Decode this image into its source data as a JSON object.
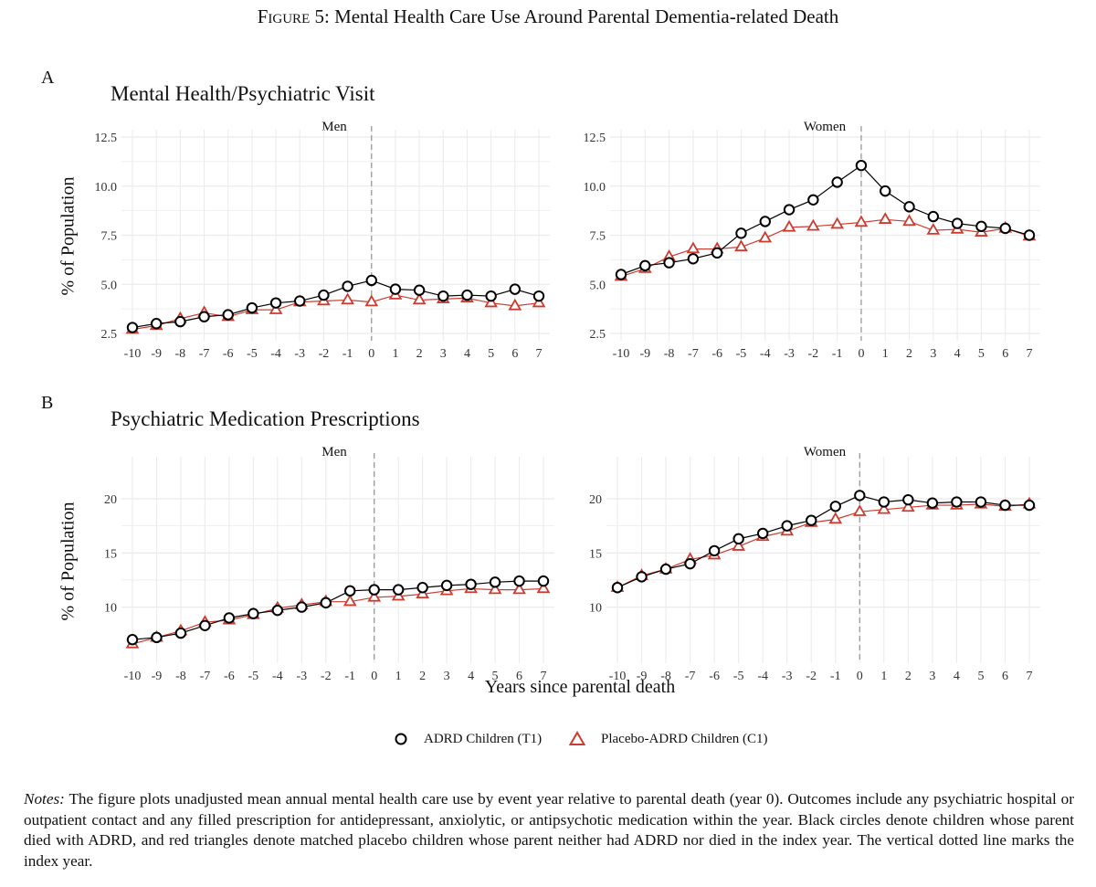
{
  "figure": {
    "title_prefix": "Figure 5:",
    "title_text": "Mental Health Care Use Around Parental Dementia-related Death",
    "panel_a_letter": "A",
    "panel_a_title": "Mental Health/Psychiatric Visit",
    "panel_b_letter": "B",
    "panel_b_title": "Psychiatric Medication Prescriptions",
    "ylabel": "% of Population",
    "xlabel": "Years since parental death",
    "legend": {
      "t1": "ADRD Children (T1)",
      "c1": "Placebo-ADRD Children (C1)"
    },
    "notes_label": "Notes:",
    "notes_text": " The figure plots unadjusted mean annual mental health care use by event year relative to parental death (year 0). Outcomes include any psychiatric hospital or outpatient contact and any filled prescription for antidepressant, anxiolytic, or antipsychotic medication within the year. Black circles denote children whose parent died with ADRD, and red triangles denote matched placebo children whose parent neither had ADRD nor died in the index year. The vertical dotted line marks the index year.",
    "colors": {
      "t1": "#000000",
      "c1": "#cc3b2f",
      "grid": "#ebebeb",
      "vline": "#999999"
    }
  },
  "chart_data": [
    {
      "type": "line",
      "panel": "A",
      "facet": "Men",
      "x": [
        -10,
        -9,
        -8,
        -7,
        -6,
        -5,
        -4,
        -3,
        -2,
        -1,
        0,
        1,
        2,
        3,
        4,
        5,
        6,
        7
      ],
      "ylim": [
        2.5,
        12.5
      ],
      "yticks": [
        2.5,
        5.0,
        7.5,
        10.0,
        12.5
      ],
      "ytick_labels": [
        "2.5",
        "5.0",
        "7.5",
        "10.0",
        "12.5"
      ],
      "vline": 0,
      "series": [
        {
          "name": "ADRD Children (T1)",
          "marker": "circle",
          "values": [
            2.8,
            3.0,
            3.1,
            3.35,
            3.45,
            3.8,
            4.05,
            4.15,
            4.45,
            4.9,
            5.2,
            4.75,
            4.7,
            4.4,
            4.45,
            4.4,
            4.75,
            4.4
          ]
        },
        {
          "name": "Placebo-ADRD Children (C1)",
          "marker": "triangle",
          "values": [
            2.7,
            2.9,
            3.25,
            3.55,
            3.35,
            3.7,
            3.7,
            4.1,
            4.15,
            4.2,
            4.1,
            4.45,
            4.2,
            4.25,
            4.3,
            4.05,
            3.9,
            4.05
          ]
        }
      ]
    },
    {
      "type": "line",
      "panel": "A",
      "facet": "Women",
      "x": [
        -10,
        -9,
        -8,
        -7,
        -6,
        -5,
        -4,
        -3,
        -2,
        -1,
        0,
        1,
        2,
        3,
        4,
        5,
        6,
        7
      ],
      "ylim": [
        2.5,
        12.5
      ],
      "yticks": [
        2.5,
        5.0,
        7.5,
        10.0,
        12.5
      ],
      "ytick_labels": [
        "2.5",
        "5.0",
        "7.5",
        "10.0",
        "12.5"
      ],
      "vline": 0,
      "series": [
        {
          "name": "ADRD Children (T1)",
          "marker": "circle",
          "values": [
            5.5,
            5.95,
            6.1,
            6.3,
            6.6,
            7.6,
            8.2,
            8.8,
            9.3,
            10.2,
            11.05,
            9.75,
            8.95,
            8.45,
            8.1,
            7.95,
            7.85,
            7.5
          ]
        },
        {
          "name": "Placebo-ADRD Children (C1)",
          "marker": "triangle",
          "values": [
            5.4,
            5.8,
            6.4,
            6.8,
            6.8,
            6.9,
            7.35,
            7.9,
            7.95,
            8.05,
            8.15,
            8.3,
            8.2,
            7.75,
            7.8,
            7.65,
            7.85,
            7.45
          ]
        }
      ]
    },
    {
      "type": "line",
      "panel": "B",
      "facet": "Men",
      "x": [
        -10,
        -9,
        -8,
        -7,
        -6,
        -5,
        -4,
        -3,
        -2,
        -1,
        0,
        1,
        2,
        3,
        4,
        5,
        6,
        7
      ],
      "ylim": [
        5.5,
        23.2
      ],
      "yticks": [
        10,
        15,
        20
      ],
      "ytick_labels": [
        "10",
        "15",
        "20"
      ],
      "vline": 0,
      "series": [
        {
          "name": "ADRD Children (T1)",
          "marker": "circle",
          "values": [
            7.0,
            7.2,
            7.6,
            8.3,
            9.0,
            9.4,
            9.7,
            10.0,
            10.4,
            11.5,
            11.6,
            11.6,
            11.8,
            12.0,
            12.1,
            12.3,
            12.4,
            12.4
          ]
        },
        {
          "name": "Placebo-ADRD Children (C1)",
          "marker": "triangle",
          "values": [
            6.6,
            7.2,
            7.8,
            8.6,
            8.8,
            9.3,
            9.9,
            10.2,
            10.5,
            10.5,
            10.9,
            11.0,
            11.2,
            11.5,
            11.7,
            11.6,
            11.6,
            11.7
          ]
        }
      ]
    },
    {
      "type": "line",
      "panel": "B",
      "facet": "Women",
      "x": [
        -10,
        -9,
        -8,
        -7,
        -6,
        -5,
        -4,
        -3,
        -2,
        -1,
        0,
        1,
        2,
        3,
        4,
        5,
        6,
        7
      ],
      "ylim": [
        5.5,
        23.2
      ],
      "yticks": [
        10,
        15,
        20
      ],
      "ytick_labels": [
        "10",
        "15",
        "20"
      ],
      "vline": 0,
      "series": [
        {
          "name": "ADRD Children (T1)",
          "marker": "circle",
          "values": [
            11.8,
            12.8,
            13.5,
            14.0,
            15.2,
            16.3,
            16.8,
            17.5,
            18.0,
            19.3,
            20.3,
            19.7,
            19.9,
            19.6,
            19.7,
            19.7,
            19.4,
            19.4
          ]
        },
        {
          "name": "Placebo-ADRD Children (C1)",
          "marker": "triangle",
          "values": [
            11.8,
            12.9,
            13.5,
            14.4,
            14.8,
            15.6,
            16.5,
            17.0,
            17.8,
            18.1,
            18.8,
            19.0,
            19.2,
            19.4,
            19.4,
            19.5,
            19.3,
            19.5
          ]
        }
      ]
    }
  ]
}
